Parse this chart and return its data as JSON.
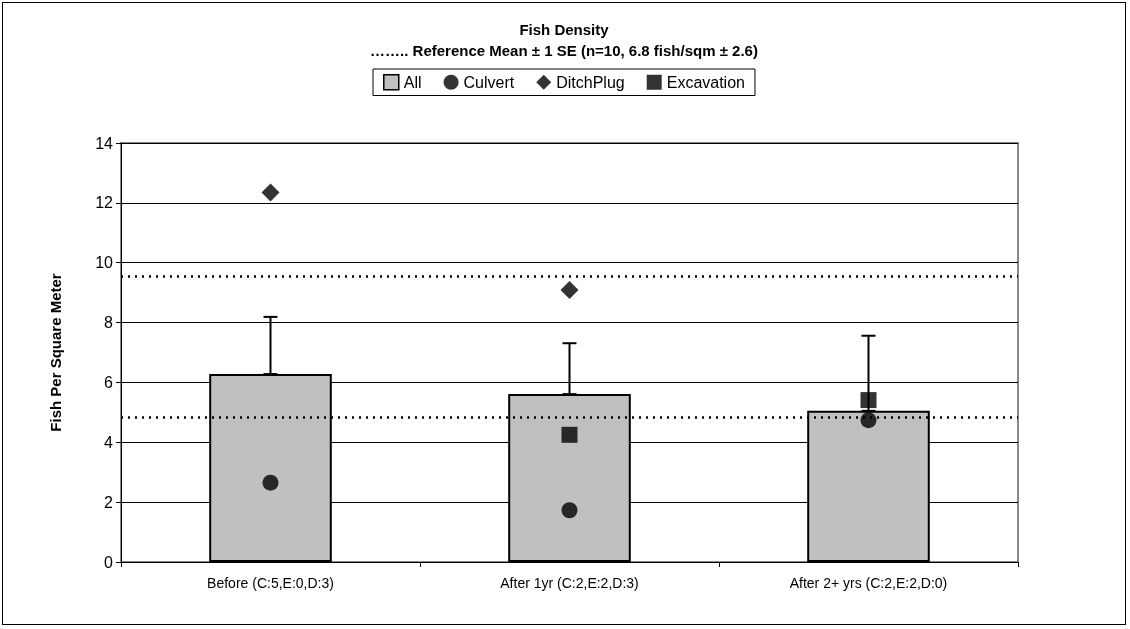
{
  "chart_data": {
    "type": "bar",
    "title": "Fish Density",
    "subtitle": "…….. Reference Mean ± 1 SE (n=10, 6.8 fish/sqm ± 2.6)",
    "ylabel": "Fish Per Square Meter",
    "categories": [
      "Before (C:5,E:0,D:3)",
      "After 1yr (C:2,E:2,D:3)",
      "After 2+ yrs (C:2,E:2,D:0)"
    ],
    "series": [
      {
        "name": "All",
        "color": "#c0c0c0",
        "values": [
          6.28,
          5.61,
          5.05
        ],
        "errors": [
          [
            6.28,
            8.19
          ],
          [
            5.61,
            7.31
          ],
          [
            5.05,
            7.56
          ]
        ]
      },
      {
        "name": "Culvert",
        "type": "scatter",
        "marker": "circle",
        "color": "#000000",
        "values": [
          2.65,
          1.73,
          4.74
        ]
      },
      {
        "name": "DitchPlug",
        "type": "scatter",
        "marker": "diamond",
        "color": "#000000",
        "values": [
          12.35,
          9.09,
          null
        ]
      },
      {
        "name": "Excavation",
        "type": "scatter",
        "marker": "square",
        "color": "#000000",
        "values": [
          null,
          4.25,
          5.41
        ]
      }
    ],
    "ylim": [
      0,
      14
    ],
    "yticks": [
      0,
      2,
      4,
      6,
      8,
      10,
      12,
      14
    ],
    "grid": "y",
    "legend": "top",
    "ref_lines": [
      {
        "axis": "y",
        "value": 9.54,
        "color": "#000000",
        "line_style": "dotted"
      },
      {
        "axis": "y",
        "value": 4.83,
        "color": "#000000",
        "line_style": "dotted"
      }
    ]
  }
}
